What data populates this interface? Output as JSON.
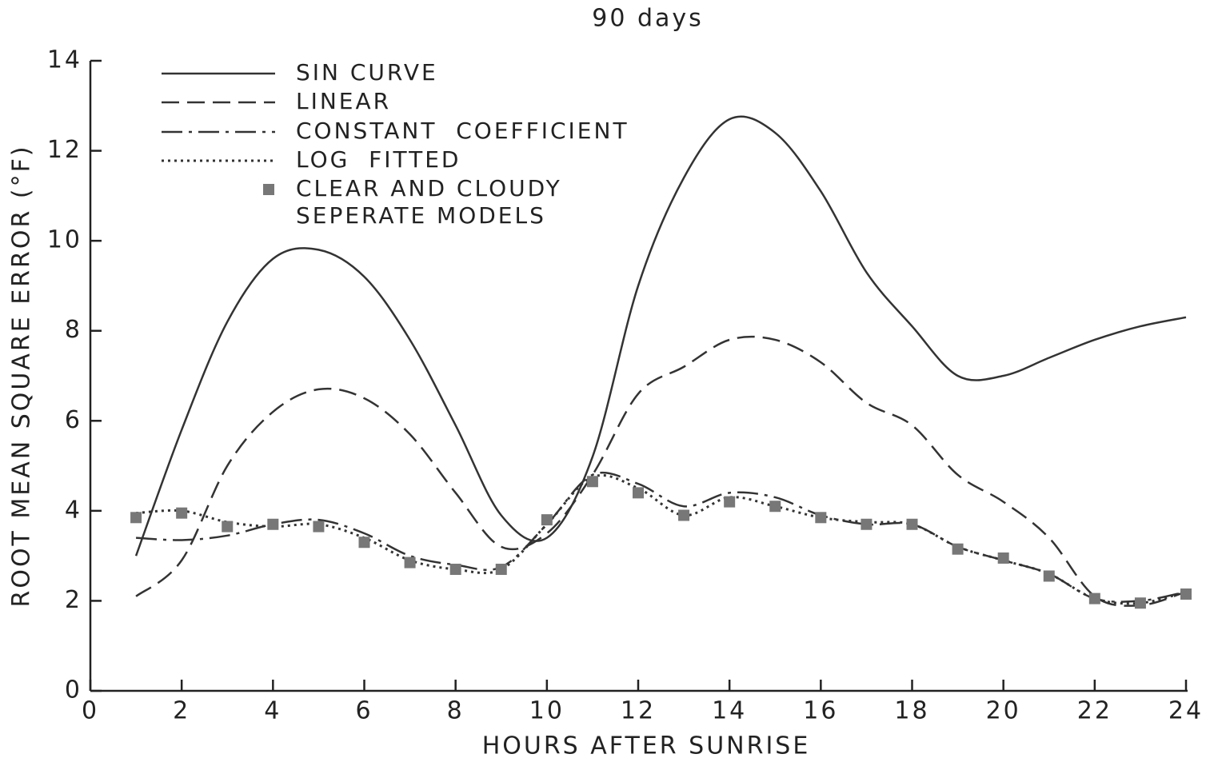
{
  "chart_data": {
    "type": "line",
    "title": "90 days",
    "xlabel": "HOURS AFTER SUNRISE",
    "ylabel": "ROOT MEAN SQUARE ERROR (°F)",
    "x": [
      1,
      2,
      3,
      4,
      5,
      6,
      7,
      8,
      9,
      10,
      11,
      12,
      13,
      14,
      15,
      16,
      17,
      18,
      19,
      20,
      21,
      22,
      23,
      24
    ],
    "xlim": [
      0,
      24
    ],
    "xticks": [
      0,
      2,
      4,
      6,
      8,
      10,
      12,
      14,
      16,
      18,
      20,
      22,
      24
    ],
    "ylim": [
      0,
      14
    ],
    "yticks": [
      0,
      2,
      4,
      6,
      8,
      10,
      12,
      14
    ],
    "grid": false,
    "legend": "upper left",
    "series": [
      {
        "name": "SIN CURVE",
        "color": "#333333",
        "style": "solid",
        "values": [
          3.0,
          5.8,
          8.2,
          9.6,
          9.8,
          9.2,
          7.8,
          5.9,
          3.9,
          3.4,
          5.2,
          9.0,
          11.4,
          12.7,
          12.4,
          11.1,
          9.3,
          8.1,
          7.0,
          7.0,
          7.4,
          7.8,
          8.1,
          8.3
        ]
      },
      {
        "name": "LINEAR",
        "color": "#333333",
        "style": "dashed",
        "values": [
          2.1,
          2.9,
          5.0,
          6.2,
          6.7,
          6.5,
          5.7,
          4.4,
          3.2,
          3.5,
          4.8,
          6.6,
          7.2,
          7.8,
          7.8,
          7.3,
          6.4,
          5.9,
          4.8,
          4.2,
          3.4,
          2.1,
          1.9,
          2.2
        ]
      },
      {
        "name": "CONSTANT  COEFFICIENT",
        "color": "#333333",
        "style": "dashdot",
        "values": [
          3.4,
          3.35,
          3.45,
          3.7,
          3.8,
          3.5,
          3.0,
          2.8,
          2.75,
          3.7,
          4.8,
          4.6,
          4.1,
          4.4,
          4.3,
          3.9,
          3.7,
          3.7,
          3.2,
          2.9,
          2.6,
          2.05,
          2.0,
          2.2
        ]
      },
      {
        "name": "LOG  FITTED",
        "color": "#333333",
        "style": "dotted",
        "values": [
          3.95,
          4.0,
          3.75,
          3.65,
          3.7,
          3.4,
          2.9,
          2.7,
          2.7,
          3.7,
          4.75,
          4.5,
          3.9,
          4.3,
          4.1,
          3.85,
          3.75,
          3.7,
          3.2,
          2.9,
          2.6,
          2.05,
          1.95,
          2.2
        ]
      },
      {
        "name": "CLEAR AND CLOUDY SEPERATE MODELS",
        "color": "#777777",
        "style": "markers",
        "values": [
          3.85,
          3.95,
          3.65,
          3.7,
          3.65,
          3.3,
          2.85,
          2.7,
          2.7,
          3.8,
          4.65,
          4.4,
          3.9,
          4.2,
          4.1,
          3.85,
          3.7,
          3.7,
          3.15,
          2.95,
          2.55,
          2.05,
          1.95,
          2.15
        ]
      }
    ]
  }
}
